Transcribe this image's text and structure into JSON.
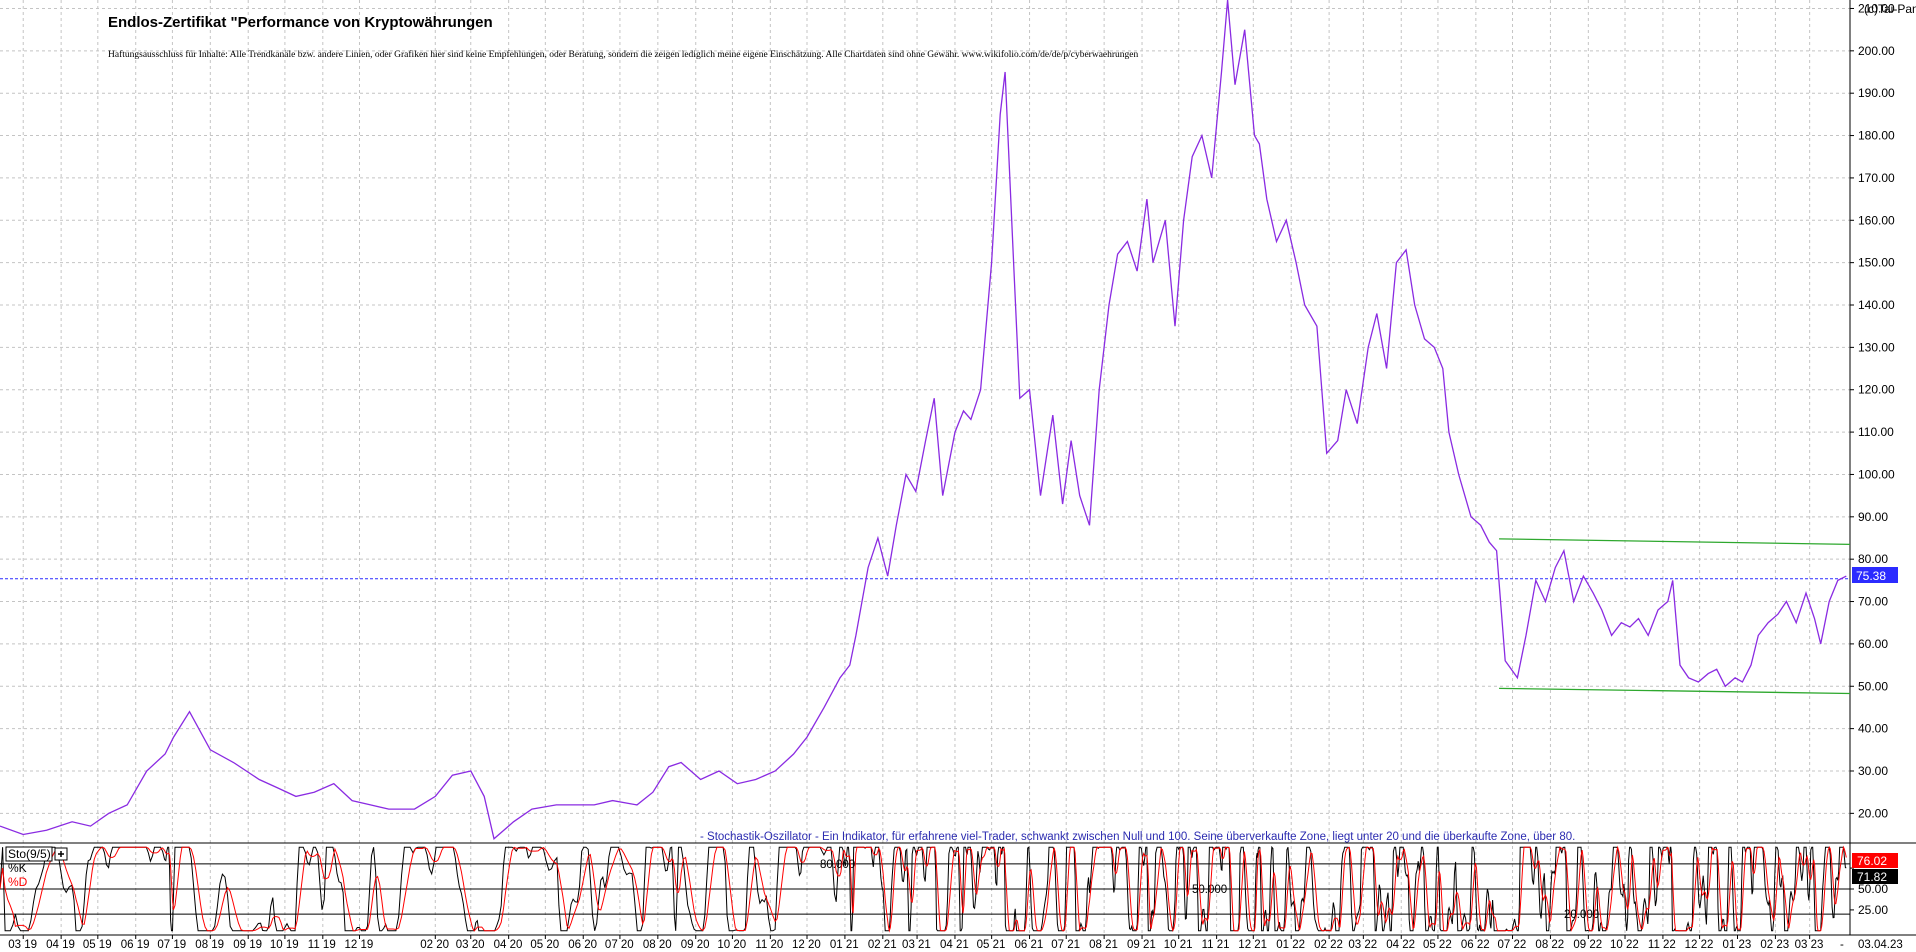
{
  "chart_data": [
    {
      "type": "line",
      "title": "Endlos-Zertifikat \"Performance von Kryptowährungen",
      "disclaimer": "Haftungsausschluss für Inhalte: Alle Trendkanäle bzw. andere Linien, oder Grafiken hier sind keine Empfehlungen, oder Beratung, sondern die zeigen lediglich meine eigene Einschätzung. Alle Chartdaten sind ohne Gewähr. www.wikifolio.com/de/de/p/cyberwaehrungen",
      "watermark": "(c)Tai-Pan",
      "line_color": "#8a2be2",
      "ylim": [
        13,
        212
      ],
      "yticks": [
        20,
        30,
        40,
        50,
        60,
        70,
        80,
        90,
        100,
        110,
        120,
        130,
        140,
        150,
        160,
        170,
        180,
        190,
        200,
        210
      ],
      "ytick_labels": [
        "20.00",
        "30.00",
        "40.00",
        "50.00",
        "60.00",
        "70.00",
        "80.00",
        "90.00",
        "100.00",
        "110.00",
        "120.00",
        "130.00",
        "140.00",
        "150.00",
        "160.00",
        "170.00",
        "180.00",
        "190.00",
        "200.00",
        "210.00"
      ],
      "xlim": [
        "2019-02-10",
        "2023-04-03"
      ],
      "x": [
        "2019-02-10",
        "2019-03-01",
        "2019-03-20",
        "2019-04-10",
        "2019-04-25",
        "2019-05-10",
        "2019-05-25",
        "2019-06-10",
        "2019-06-25",
        "2019-07-02",
        "2019-07-15",
        "2019-08-01",
        "2019-08-20",
        "2019-09-10",
        "2019-09-25",
        "2019-10-10",
        "2019-10-25",
        "2019-11-10",
        "2019-11-25",
        "2019-12-10",
        "2019-12-25",
        "2020-01-15",
        "2020-02-01",
        "2020-02-15",
        "2020-03-01",
        "2020-03-12",
        "2020-03-20",
        "2020-04-05",
        "2020-04-20",
        "2020-05-10",
        "2020-05-25",
        "2020-06-10",
        "2020-06-25",
        "2020-07-15",
        "2020-07-28",
        "2020-08-10",
        "2020-08-20",
        "2020-09-05",
        "2020-09-20",
        "2020-10-05",
        "2020-10-20",
        "2020-11-05",
        "2020-11-20",
        "2020-12-01",
        "2020-12-15",
        "2020-12-28",
        "2021-01-05",
        "2021-01-10",
        "2021-01-20",
        "2021-01-28",
        "2021-02-05",
        "2021-02-12",
        "2021-02-20",
        "2021-02-28",
        "2021-03-08",
        "2021-03-15",
        "2021-03-22",
        "2021-04-01",
        "2021-04-08",
        "2021-04-14",
        "2021-04-22",
        "2021-05-01",
        "2021-05-08",
        "2021-05-12",
        "2021-05-19",
        "2021-05-24",
        "2021-06-01",
        "2021-06-10",
        "2021-06-20",
        "2021-06-28",
        "2021-07-05",
        "2021-07-12",
        "2021-07-20",
        "2021-07-28",
        "2021-08-05",
        "2021-08-12",
        "2021-08-20",
        "2021-08-28",
        "2021-09-05",
        "2021-09-10",
        "2021-09-20",
        "2021-09-28",
        "2021-10-05",
        "2021-10-12",
        "2021-10-20",
        "2021-10-28",
        "2021-11-05",
        "2021-11-10",
        "2021-11-16",
        "2021-11-24",
        "2021-12-02",
        "2021-12-06",
        "2021-12-12",
        "2021-12-20",
        "2021-12-28",
        "2022-01-05",
        "2022-01-12",
        "2022-01-22",
        "2022-01-30",
        "2022-02-08",
        "2022-02-15",
        "2022-02-24",
        "2022-03-05",
        "2022-03-12",
        "2022-03-20",
        "2022-03-28",
        "2022-04-05",
        "2022-04-12",
        "2022-04-20",
        "2022-04-28",
        "2022-05-05",
        "2022-05-10",
        "2022-05-18",
        "2022-05-28",
        "2022-06-05",
        "2022-06-12",
        "2022-06-18",
        "2022-06-25",
        "2022-07-05",
        "2022-07-12",
        "2022-07-20",
        "2022-07-28",
        "2022-08-05",
        "2022-08-12",
        "2022-08-20",
        "2022-08-28",
        "2022-09-05",
        "2022-09-12",
        "2022-09-20",
        "2022-09-28",
        "2022-10-05",
        "2022-10-12",
        "2022-10-20",
        "2022-10-28",
        "2022-11-05",
        "2022-11-09",
        "2022-11-15",
        "2022-11-22",
        "2022-11-30",
        "2022-12-08",
        "2022-12-15",
        "2022-12-22",
        "2022-12-30",
        "2023-01-05",
        "2023-01-12",
        "2023-01-18",
        "2023-01-26",
        "2023-02-03",
        "2023-02-10",
        "2023-02-18",
        "2023-02-26",
        "2023-03-05",
        "2023-03-10",
        "2023-03-17",
        "2023-03-24",
        "2023-03-31"
      ],
      "y": [
        17,
        15,
        16,
        18,
        17,
        20,
        22,
        30,
        34,
        38,
        44,
        35,
        32,
        28,
        26,
        24,
        25,
        27,
        23,
        22,
        21,
        21,
        24,
        29,
        30,
        24,
        14,
        18,
        21,
        22,
        22,
        22,
        23,
        22,
        25,
        31,
        32,
        28,
        30,
        27,
        28,
        30,
        34,
        38,
        45,
        52,
        55,
        62,
        78,
        85,
        76,
        88,
        100,
        96,
        108,
        118,
        95,
        110,
        115,
        113,
        120,
        150,
        185,
        195,
        150,
        118,
        120,
        95,
        114,
        93,
        108,
        95,
        88,
        120,
        140,
        152,
        155,
        148,
        165,
        150,
        160,
        135,
        160,
        175,
        180,
        170,
        195,
        212,
        192,
        205,
        180,
        178,
        165,
        155,
        160,
        150,
        140,
        135,
        105,
        108,
        120,
        112,
        130,
        138,
        125,
        150,
        153,
        140,
        132,
        130,
        125,
        110,
        100,
        90,
        88,
        84,
        82,
        56,
        52,
        62,
        75,
        70,
        78,
        82,
        70,
        76,
        72,
        68,
        62,
        65,
        64,
        66,
        62,
        68,
        70,
        75,
        55,
        52,
        51,
        53,
        54,
        50,
        52,
        51,
        55,
        62,
        65,
        67,
        70,
        65,
        72,
        66,
        60,
        70,
        75,
        76
      ]
    },
    {
      "type": "line",
      "label": "Sto(9/5)",
      "note": "- Stochastik-Oszillator - Ein Indikator, für erfahrene viel-Trader, schwankt zwischen Null und 100. Seine überverkaufte Zone, liegt unter 20 und die überkaufte Zone, über 80.",
      "ylim": [
        -5,
        105
      ],
      "ytick_labels": [
        "75.00",
        "50.00",
        "25.00"
      ],
      "yticks": [
        75,
        50,
        25
      ],
      "levels": [
        80,
        50,
        20
      ],
      "level_labels": [
        "80.000",
        "50.000",
        "20.000"
      ],
      "series": [
        {
          "name": "%K",
          "color": "#000000",
          "last": "76.02"
        },
        {
          "name": "%D",
          "color": "#ff0000",
          "last": "71.82"
        }
      ]
    }
  ],
  "annotations": {
    "current_price_label": "75.38",
    "current_price": 75.38,
    "trend_upper": [
      [
        "2022-06-20",
        84.8
      ],
      [
        "2023-04-03",
        83.5
      ]
    ],
    "trend_lower": [
      [
        "2022-06-20",
        49.5
      ],
      [
        "2023-04-03",
        48.3
      ]
    ],
    "ref_line_color": "#2b2bff",
    "trend_color": "#2ea82e"
  },
  "x_axis": {
    "tick_labels": [
      "03 19",
      "04 19",
      "05 19",
      "06 19",
      "07 19",
      "08 19",
      "09 19",
      "10 19",
      "11 19",
      "12 19",
      "02 20",
      "03 20",
      "04 20",
      "05 20",
      "06 20",
      "07 20",
      "08 20",
      "09 20",
      "10 20",
      "11 20",
      "12 20",
      "01 21",
      "02 21",
      "03 21",
      "04 21",
      "05 21",
      "06 21",
      "07 21",
      "08 21",
      "09 21",
      "10 21",
      "11 21",
      "12 21",
      "01 22",
      "02 22",
      "03 22",
      "04 22",
      "05 22",
      "06 22",
      "07 22",
      "08 22",
      "09 22",
      "10 22",
      "11 22",
      "12 22",
      "01 23",
      "02 23",
      "03 23"
    ],
    "tick_dates": [
      "2019-03-01",
      "2019-04-01",
      "2019-05-01",
      "2019-06-01",
      "2019-07-01",
      "2019-08-01",
      "2019-09-01",
      "2019-10-01",
      "2019-11-01",
      "2019-12-01",
      "2020-02-01",
      "2020-03-01",
      "2020-04-01",
      "2020-05-01",
      "2020-06-01",
      "2020-07-01",
      "2020-08-01",
      "2020-09-01",
      "2020-10-01",
      "2020-11-01",
      "2020-12-01",
      "2021-01-01",
      "2021-02-01",
      "2021-03-01",
      "2021-04-01",
      "2021-05-01",
      "2021-06-01",
      "2021-07-01",
      "2021-08-01",
      "2021-09-01",
      "2021-10-01",
      "2021-11-01",
      "2021-12-01",
      "2022-01-01",
      "2022-02-01",
      "2022-03-01",
      "2022-04-01",
      "2022-05-01",
      "2022-06-01",
      "2022-07-01",
      "2022-08-01",
      "2022-09-01",
      "2022-10-01",
      "2022-11-01",
      "2022-12-01",
      "2023-01-01",
      "2023-02-01",
      "2023-03-01"
    ],
    "last_date_label": "03.04.23"
  }
}
